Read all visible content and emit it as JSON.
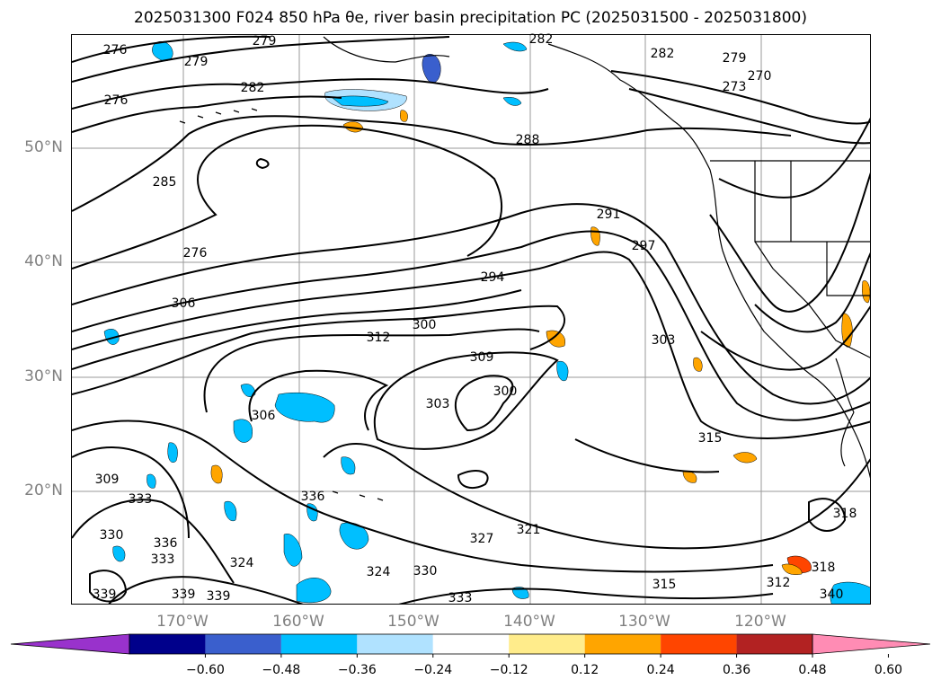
{
  "title": "2025031300 F024 850 hPa θe, river basin precipitation PC (2025031500 - 2025031800)",
  "map": {
    "lat_labels": [
      "50°N",
      "40°N",
      "30°N",
      "20°N"
    ],
    "lon_labels": [
      "170°W",
      "160°W",
      "150°W",
      "140°W",
      "130°W",
      "120°W"
    ],
    "contour_labels": [
      "276",
      "279",
      "276",
      "279",
      "282",
      "285",
      "282",
      "288",
      "282",
      "279",
      "270",
      "273",
      "276",
      "291",
      "297",
      "294",
      "306",
      "300",
      "312",
      "309",
      "303",
      "303",
      "300",
      "306",
      "315",
      "309",
      "333",
      "330",
      "336",
      "333",
      "336",
      "324",
      "324",
      "330",
      "327",
      "321",
      "318",
      "318",
      "312",
      "315",
      "333",
      "339",
      "339",
      "339",
      "340"
    ]
  },
  "colorbar": {
    "tick_labels": [
      "−0.60",
      "−0.48",
      "−0.36",
      "−0.24",
      "−0.12",
      "0.12",
      "0.24",
      "0.36",
      "0.48",
      "0.60"
    ],
    "colors": [
      "#9932cc",
      "#00008b",
      "#3a5fcd",
      "#00bfff",
      "#b0e2ff",
      "#ffffff",
      "#ffec8b",
      "#ffa500",
      "#ff4500",
      "#b22222",
      "#ff8cb4"
    ]
  }
}
